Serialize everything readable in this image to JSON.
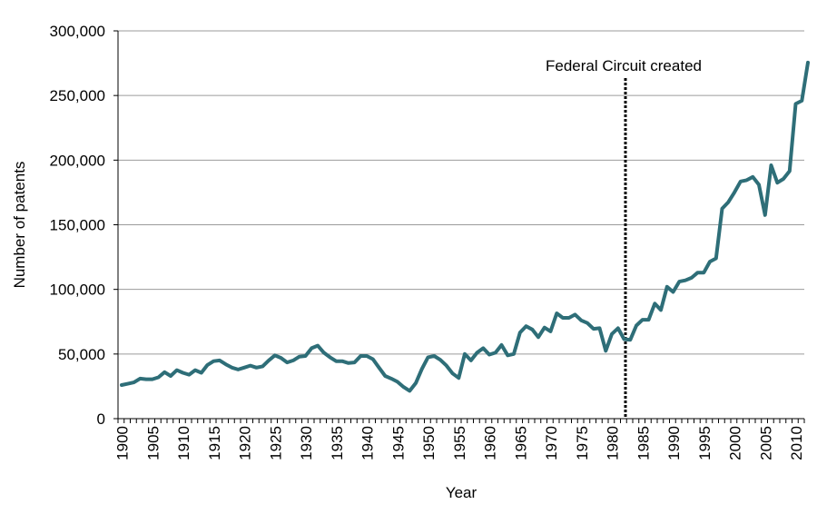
{
  "chart_data": {
    "type": "line",
    "title": "",
    "xlabel": "Year",
    "ylabel": "Number of patents",
    "xlim": [
      1900,
      2012
    ],
    "ylim": [
      0,
      300000
    ],
    "grid": "horizontal",
    "colors": {
      "line": "#2e6e78",
      "grid": "#9b9b9b",
      "axis": "#000000"
    },
    "x_ticks": [
      1900,
      1905,
      1910,
      1915,
      1920,
      1925,
      1930,
      1935,
      1940,
      1945,
      1950,
      1955,
      1960,
      1965,
      1970,
      1975,
      1980,
      1985,
      1990,
      1995,
      2000,
      2005,
      2010
    ],
    "y_ticks": [
      0,
      50000,
      100000,
      150000,
      200000,
      250000,
      300000
    ],
    "y_tick_labels": [
      "0",
      "50,000",
      "100,000",
      "150,000",
      "200,000",
      "250,000",
      "300,000"
    ],
    "annotation": {
      "label": "Federal Circuit created",
      "x": 1982
    },
    "series": [
      {
        "x": [
          1900,
          1901,
          1902,
          1903,
          1904,
          1905,
          1906,
          1907,
          1908,
          1909,
          1910,
          1911,
          1912,
          1913,
          1914,
          1915,
          1916,
          1917,
          1918,
          1919,
          1920,
          1921,
          1922,
          1923,
          1924,
          1925,
          1926,
          1927,
          1928,
          1929,
          1930,
          1931,
          1932,
          1933,
          1934,
          1935,
          1936,
          1937,
          1938,
          1939,
          1940,
          1941,
          1942,
          1943,
          1944,
          1945,
          1946,
          1947,
          1948,
          1949,
          1950,
          1951,
          1952,
          1953,
          1954,
          1955,
          1956,
          1957,
          1958,
          1959,
          1960,
          1961,
          1962,
          1963,
          1964,
          1965,
          1966,
          1967,
          1968,
          1969,
          1970,
          1971,
          1972,
          1973,
          1974,
          1975,
          1976,
          1977,
          1978,
          1979,
          1980,
          1981,
          1982,
          1983,
          1984,
          1985,
          1986,
          1987,
          1988,
          1989,
          1990,
          1991,
          1992,
          1993,
          1994,
          1995,
          1996,
          1997,
          1998,
          1999,
          2000,
          2001,
          2002,
          2003,
          2004,
          2005,
          2006,
          2007,
          2008,
          2009,
          2010,
          2011,
          2012
        ],
        "values": [
          26000,
          27000,
          28000,
          31000,
          30500,
          30500,
          32000,
          36000,
          33000,
          37500,
          35500,
          34000,
          37500,
          35500,
          41500,
          44500,
          45000,
          42000,
          39500,
          38000,
          39500,
          41000,
          39500,
          40500,
          45000,
          49000,
          47000,
          43500,
          45000,
          48000,
          48500,
          54500,
          56500,
          51000,
          47500,
          44500,
          44500,
          43000,
          43500,
          48500,
          48500,
          46000,
          39500,
          33000,
          31000,
          28500,
          24500,
          21500,
          27500,
          38500,
          47500,
          48500,
          45500,
          41000,
          35000,
          31500,
          50000,
          45000,
          51000,
          54500,
          49500,
          51000,
          57000,
          49000,
          50000,
          66500,
          71500,
          69000,
          63000,
          70500,
          67500,
          81500,
          78000,
          78000,
          80500,
          76000,
          74000,
          69500,
          70000,
          52500,
          65500,
          70000,
          61500,
          61000,
          72000,
          76500,
          76500,
          89000,
          84000,
          102000,
          98000,
          106000,
          107000,
          109000,
          113000,
          113000,
          121500,
          124000,
          162500,
          167500,
          175000,
          183500,
          184500,
          187000,
          181000,
          157500,
          196000,
          182500,
          185500,
          191500,
          243500,
          246000,
          275500
        ]
      }
    ]
  }
}
